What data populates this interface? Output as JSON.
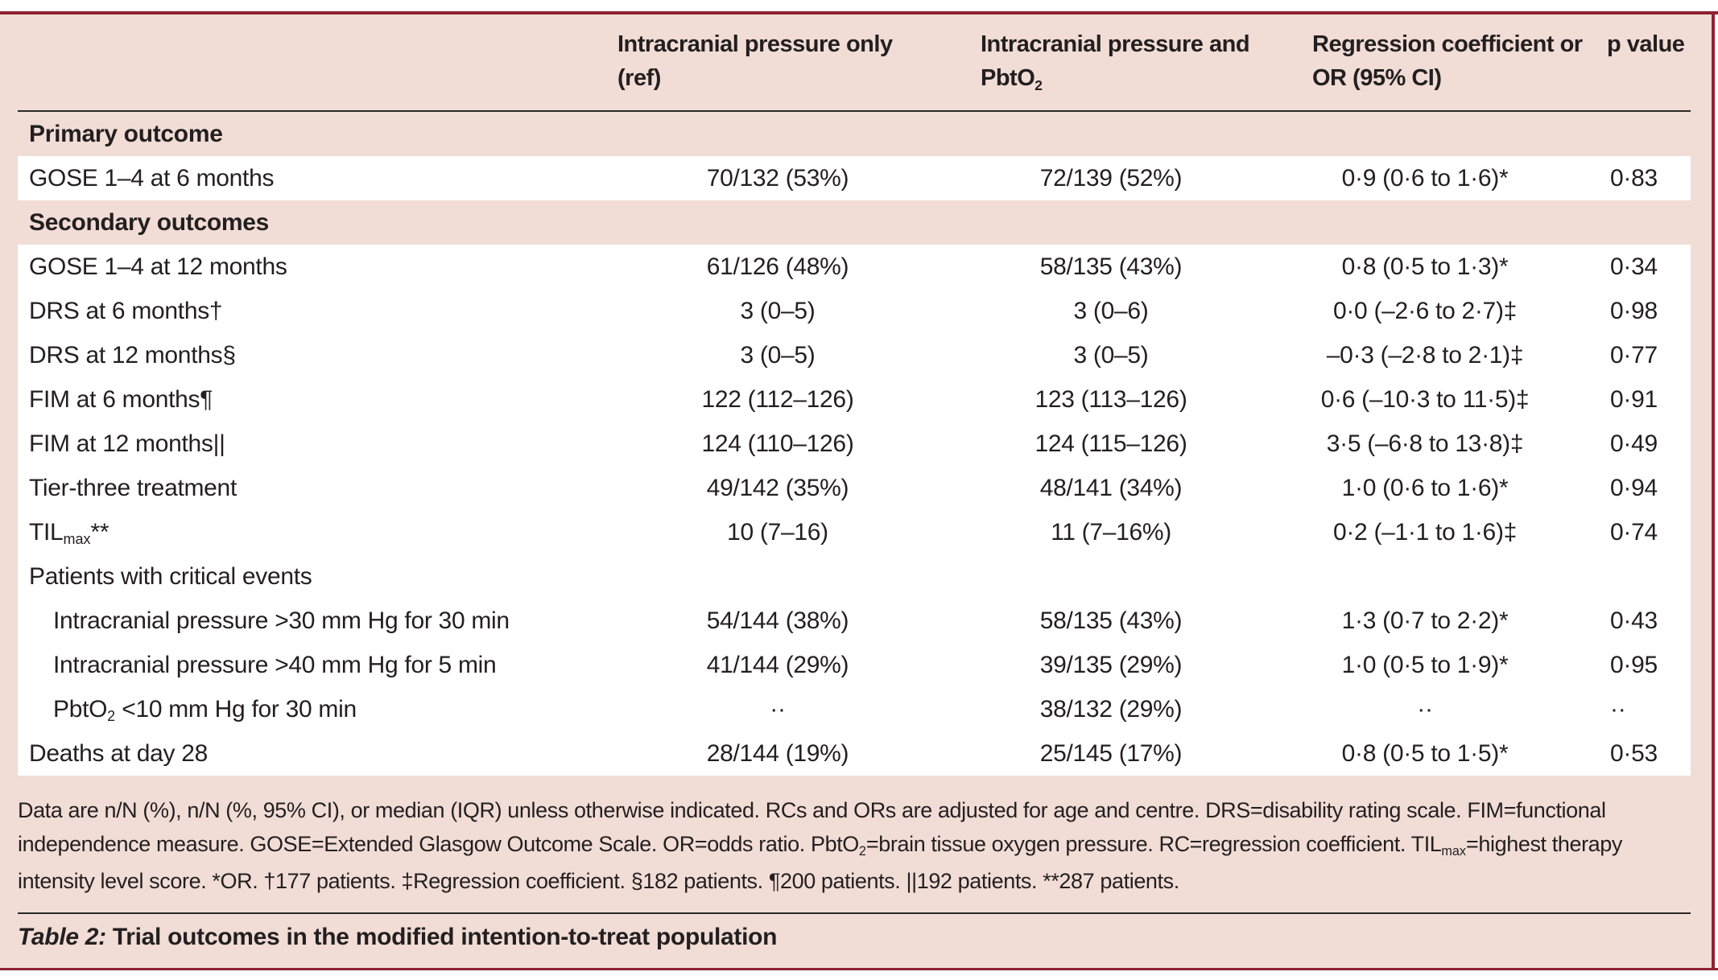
{
  "colors": {
    "panel_pink": "#f1dcd6",
    "rule_red": "#8e2233",
    "row_white": "#ffffff",
    "text": "#231f20"
  },
  "table": {
    "header": {
      "col2_line1": "Intracranial pressure only",
      "col2_line2": "(ref)",
      "col3_line1": "Intracranial pressure and",
      "col3_line2_base": "PbtO",
      "col3_line2_sub": "2",
      "col4_line1": "Regression coefficient or",
      "col4_line2": "OR (95% CI)",
      "col5_line1": "p value"
    },
    "rows": [
      {
        "type": "section",
        "label_base": "Primary outcome"
      },
      {
        "type": "data",
        "label_base": "GOSE 1–4 at 6 months",
        "icp_only": "70/132 (53%)",
        "icp_pbto2": "72/139 (52%)",
        "coefficient": "0·9 (0·6 to 1·6)*",
        "p_value": "0·83"
      },
      {
        "type": "section",
        "label_base": "Secondary outcomes"
      },
      {
        "type": "data",
        "label_base": "GOSE 1–4 at 12 months",
        "icp_only": "61/126 (48%)",
        "icp_pbto2": "58/135 (43%)",
        "coefficient": "0·8 (0·5 to 1·3)*",
        "p_value": "0·34"
      },
      {
        "type": "data",
        "label_base": "DRS at 6 months†",
        "icp_only": "3 (0–5)",
        "icp_pbto2": "3 (0–6)",
        "coefficient": "0·0 (–2·6 to 2·7)‡",
        "p_value": "0·98"
      },
      {
        "type": "data",
        "label_base": "DRS at 12 months§",
        "icp_only": "3 (0–5)",
        "icp_pbto2": "3 (0–5)",
        "coefficient": "–0·3 (–2·8 to 2·1)‡",
        "p_value": "0·77"
      },
      {
        "type": "data",
        "label_base": "FIM at 6 months¶",
        "icp_only": "122 (112–126)",
        "icp_pbto2": "123 (113–126)",
        "coefficient": "0·6 (–10·3 to 11·5)‡",
        "p_value": "0·91"
      },
      {
        "type": "data",
        "label_base": "FIM at 12 months||",
        "icp_only": "124 (110–126)",
        "icp_pbto2": "124 (115–126)",
        "coefficient": "3·5 (–6·8 to 13·8)‡",
        "p_value": "0·49"
      },
      {
        "type": "data",
        "label_base": "Tier-three treatment",
        "icp_only": "49/142 (35%)",
        "icp_pbto2": "48/141 (34%)",
        "coefficient": "1·0 (0·6 to 1·6)*",
        "p_value": "0·94"
      },
      {
        "type": "data",
        "label_base": "TIL",
        "label_sub": "max",
        "label_suffix": "**",
        "icp_only": "10 (7–16)",
        "icp_pbto2": "11 (7–16%)",
        "coefficient": "0·2 (–1·1 to 1·6)‡",
        "p_value": "0·74"
      },
      {
        "type": "subheader",
        "label_base": "Patients with critical events"
      },
      {
        "type": "data",
        "indent": true,
        "label_base": "Intracranial pressure >30 mm Hg for 30 min",
        "icp_only": "54/144 (38%)",
        "icp_pbto2": "58/135 (43%)",
        "coefficient": "1·3 (0·7 to 2·2)*",
        "p_value": "0·43"
      },
      {
        "type": "data",
        "indent": true,
        "label_base": "Intracranial pressure >40 mm Hg for 5 min",
        "icp_only": "41/144 (29%)",
        "icp_pbto2": "39/135 (29%)",
        "coefficient": "1·0 (0·5 to 1·9)*",
        "p_value": "0·95"
      },
      {
        "type": "data",
        "indent": true,
        "label_base": "PbtO",
        "label_sub": "2",
        "label_suffix": " <10 mm Hg for 30 min",
        "icp_only": "··",
        "icp_pbto2": "38/132 (29%)",
        "coefficient": "··",
        "p_value": "··"
      },
      {
        "type": "data",
        "label_base": "Deaths at day 28",
        "icp_only": "28/144 (19%)",
        "icp_pbto2": "25/145 (17%)",
        "coefficient": "0·8 (0·5 to 1·5)*",
        "p_value": "0·53"
      }
    ],
    "footnote": {
      "line1": "Data are n/N (%), n/N (%, 95% CI), or median (IQR) unless otherwise indicated. RCs and ORs are adjusted for age and centre. DRS=disability rating scale. FIM=functional",
      "line2_seg1": "independence measure. GOSE=Extended Glasgow Outcome Scale. OR=odds ratio. PbtO",
      "line2_sub1": "2",
      "line2_seg2": "=brain tissue oxygen pressure. RC=regression coefficient. TIL",
      "line2_sub2": "max",
      "line2_seg3": "=highest therapy",
      "line3": "intensity level score. *OR. †177 patients. ‡Regression coefficient. §182 patients. ¶200 patients. ||192 patients. **287 patients."
    },
    "caption": {
      "prefix": "Table 2:",
      "text": " Trial outcomes in the modified intention-to-treat population"
    }
  }
}
